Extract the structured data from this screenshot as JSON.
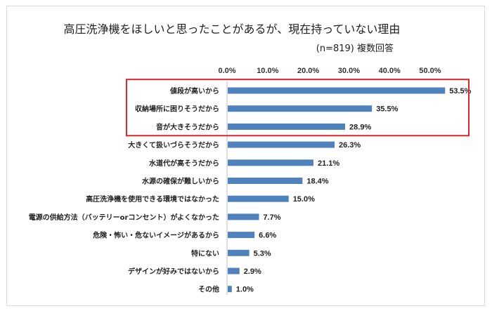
{
  "chart_data": {
    "type": "bar",
    "orientation": "horizontal",
    "title": "高圧洗浄機をほしいと思ったことがあるが、現在持っていない理由",
    "subtitle": "(n=819) 複数回答",
    "categories": [
      "値段が高いから",
      "収納場所に困りそうだから",
      "音が大きそうだから",
      "大きくて扱いづらそうだから",
      "水道代が高そうだから",
      "水源の確保が難しいから",
      "高圧洗浄機を使用できる環境ではなかった",
      "電源の供給方法（バッテリーorコンセント）がよくなかった",
      "危険・怖い・危ないイメージがあるから",
      "特にない",
      "デザインが好みではないから",
      "その他"
    ],
    "values": [
      53.5,
      35.5,
      28.9,
      26.3,
      21.1,
      18.4,
      15.0,
      7.7,
      6.6,
      5.3,
      2.9,
      1.0
    ],
    "data_labels": [
      "53.5%",
      "35.5%",
      "28.9%",
      "26.3%",
      "21.1%",
      "18.4%",
      "15.0%",
      "7.7%",
      "6.6%",
      "5.3%",
      "2.9%",
      "1.0%"
    ],
    "x_ticks": [
      "0.0%",
      "10.0%",
      "20.0%",
      "30.0%",
      "40.0%",
      "50.0%"
    ],
    "x_tick_values": [
      0,
      10,
      20,
      30,
      40,
      50
    ],
    "xlim": [
      0,
      55
    ],
    "axis_position": "top",
    "grid": false,
    "highlighted_categories": [
      "値段が高いから",
      "収納場所に困りそうだから",
      "音が大きそうだから"
    ],
    "colors": {
      "bar": "#4f81bd",
      "highlight_box": "#e0262b",
      "axis": "#bfbfbf"
    }
  }
}
